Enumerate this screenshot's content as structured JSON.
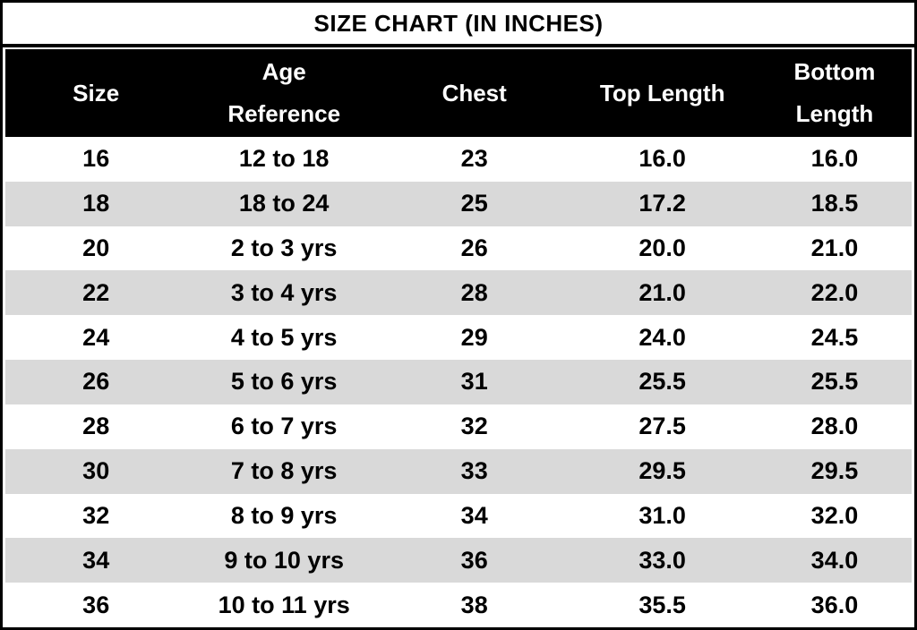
{
  "title": "SIZE CHART (IN INCHES)",
  "chart_data": {
    "type": "table",
    "title": "SIZE CHART (IN INCHES)",
    "columns": [
      "Size",
      "Age\nReference",
      "Chest",
      "Top Length",
      "Bottom\nLength"
    ],
    "rows": [
      [
        "16",
        "12 to 18",
        "23",
        "16.0",
        "16.0"
      ],
      [
        "18",
        "18 to 24",
        "25",
        "17.2",
        "18.5"
      ],
      [
        "20",
        "2 to 3 yrs",
        "26",
        "20.0",
        "21.0"
      ],
      [
        "22",
        "3 to 4 yrs",
        "28",
        "21.0",
        "22.0"
      ],
      [
        "24",
        "4 to 5 yrs",
        "29",
        "24.0",
        "24.5"
      ],
      [
        "26",
        "5 to 6 yrs",
        "31",
        "25.5",
        "25.5"
      ],
      [
        "28",
        "6 to 7 yrs",
        "32",
        "27.5",
        "28.0"
      ],
      [
        "30",
        "7 to 8 yrs",
        "33",
        "29.5",
        "29.5"
      ],
      [
        "32",
        "8 to 9 yrs",
        "34",
        "31.0",
        "32.0"
      ],
      [
        "34",
        "9 to 10 yrs",
        "36",
        "33.0",
        "34.0"
      ],
      [
        "36",
        "10 to 11 yrs",
        "38",
        "35.5",
        "36.0"
      ]
    ],
    "units": "inches",
    "layout": {
      "alternating_rows": true,
      "header_position": "top"
    }
  },
  "colors": {
    "header_bg": "#000000",
    "header_text": "#ffffff",
    "row_bg": "#ffffff",
    "alt_row_bg": "#d9d9d9",
    "border": "#000000",
    "text": "#000000"
  }
}
